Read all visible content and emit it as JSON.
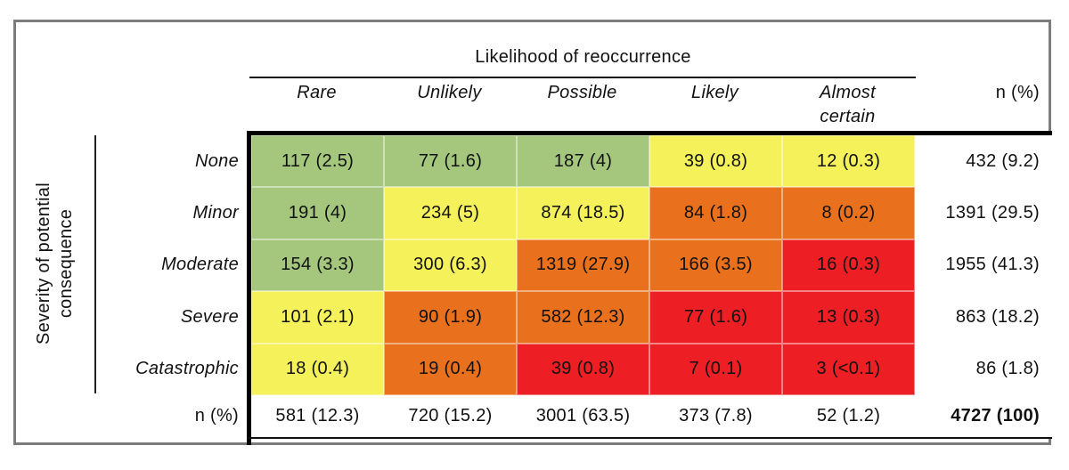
{
  "figure": {
    "x_axis_title": "Likelihood of reoccurrence",
    "y_axis_title": "Severity of potential\nconsequence",
    "likelihood_levels": [
      "Rare",
      "Unlikely",
      "Possible",
      "Likely",
      "Almost certain"
    ],
    "severity_levels": [
      "None",
      "Minor",
      "Moderate",
      "Severe",
      "Catastrophic"
    ],
    "total_column_header": "n (%)",
    "total_row_label": "n (%)",
    "cells": [
      [
        "117 (2.5)",
        "77 (1.6)",
        "187 (4)",
        "39 (0.8)",
        "12 (0.3)"
      ],
      [
        "191 (4)",
        "234 (5)",
        "874 (18.5)",
        "84 (1.8)",
        "8 (0.2)"
      ],
      [
        "154 (3.3)",
        "300 (6.3)",
        "1319 (27.9)",
        "166 (3.5)",
        "16 (0.3)"
      ],
      [
        "101 (2.1)",
        "90 (1.9)",
        "582 (12.3)",
        "77 (1.6)",
        "13 (0.3)"
      ],
      [
        "18 (0.4)",
        "19 (0.4)",
        "39 (0.8)",
        "7 (0.1)",
        "3 (<0.1)"
      ]
    ],
    "cell_colors": [
      [
        "green",
        "green",
        "green",
        "yellow",
        "yellow"
      ],
      [
        "green",
        "yellow",
        "yellow",
        "orange",
        "orange"
      ],
      [
        "green",
        "yellow",
        "orange",
        "orange",
        "red"
      ],
      [
        "yellow",
        "orange",
        "orange",
        "red",
        "red"
      ],
      [
        "yellow",
        "orange",
        "red",
        "red",
        "red"
      ]
    ],
    "row_totals": [
      "432 (9.2)",
      "1391 (29.5)",
      "1955 (41.3)",
      "863 (18.2)",
      "86 (1.8)"
    ],
    "column_totals": [
      "581 (12.3)",
      "720 (15.2)",
      "3001 (63.5)",
      "373 (7.8)",
      "52 (1.2)"
    ],
    "grand_total": "4727 (100)",
    "palette": {
      "green": "#a4c77d",
      "yellow": "#f4f15a",
      "orange": "#e9711d",
      "red": "#ed1f24",
      "frame_gray": "#7c7c7c",
      "line_black": "#111111"
    }
  },
  "chart_data": {
    "type": "heatmap",
    "title": "Likelihood of reoccurrence",
    "xlabel": "Likelihood of reoccurrence",
    "ylabel": "Severity of potential consequence",
    "x_categories": [
      "Rare",
      "Unlikely",
      "Possible",
      "Likely",
      "Almost certain"
    ],
    "y_categories": [
      "None",
      "Minor",
      "Moderate",
      "Severe",
      "Catastrophic"
    ],
    "counts": [
      [
        117,
        77,
        187,
        39,
        12
      ],
      [
        191,
        234,
        874,
        84,
        8
      ],
      [
        154,
        300,
        1319,
        166,
        16
      ],
      [
        101,
        90,
        582,
        77,
        13
      ],
      [
        18,
        19,
        39,
        7,
        3
      ]
    ],
    "percents": [
      [
        2.5,
        1.6,
        4,
        0.8,
        0.3
      ],
      [
        4,
        5,
        18.5,
        1.8,
        0.2
      ],
      [
        3.3,
        6.3,
        27.9,
        3.5,
        0.3
      ],
      [
        2.1,
        1.9,
        12.3,
        1.6,
        0.3
      ],
      [
        0.4,
        0.4,
        0.8,
        0.1,
        "<0.1"
      ]
    ],
    "risk_levels": [
      [
        "green",
        "green",
        "green",
        "yellow",
        "yellow"
      ],
      [
        "green",
        "yellow",
        "yellow",
        "orange",
        "orange"
      ],
      [
        "green",
        "yellow",
        "orange",
        "orange",
        "red"
      ],
      [
        "yellow",
        "orange",
        "orange",
        "red",
        "red"
      ],
      [
        "yellow",
        "orange",
        "red",
        "red",
        "red"
      ]
    ],
    "row_totals_n_pct": [
      [
        432,
        9.2
      ],
      [
        1391,
        29.5
      ],
      [
        1955,
        41.3
      ],
      [
        863,
        18.2
      ],
      [
        86,
        1.8
      ]
    ],
    "col_totals_n_pct": [
      [
        581,
        12.3
      ],
      [
        720,
        15.2
      ],
      [
        3001,
        63.5
      ],
      [
        373,
        7.8
      ],
      [
        52,
        1.2
      ]
    ],
    "grand_total_n_pct": [
      4727,
      100
    ],
    "legend_position": "none",
    "grid": false
  }
}
